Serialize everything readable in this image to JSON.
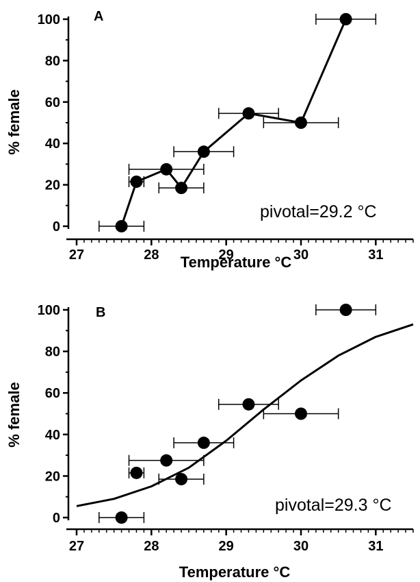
{
  "chart_data": [
    {
      "type": "line",
      "panel_label": "A",
      "xlabel": "Temperature °C",
      "ylabel": "% female",
      "xlim": [
        27,
        31.5
      ],
      "ylim": [
        0,
        100
      ],
      "xticks": [
        "27",
        "28",
        "29",
        "30",
        "31"
      ],
      "yticks": [
        "0",
        "20",
        "40",
        "60",
        "80",
        "100"
      ],
      "annotation": "pivotal=29.2 °C",
      "series": [
        {
          "x": [
            27.6,
            27.8,
            28.2,
            28.4,
            28.7,
            29.3,
            30.0,
            30.6
          ],
          "y": [
            0,
            21.5,
            27.5,
            18.5,
            36,
            54.5,
            50,
            100
          ],
          "xerr": [
            0.3,
            0.1,
            0.5,
            0.3,
            0.4,
            0.4,
            0.5,
            0.4
          ]
        }
      ]
    },
    {
      "type": "scatter",
      "panel_label": "B",
      "xlabel": "Temperature °C",
      "ylabel": "% female",
      "xlim": [
        27,
        31.5
      ],
      "ylim": [
        0,
        100
      ],
      "xticks": [
        "27",
        "28",
        "29",
        "30",
        "31"
      ],
      "yticks": [
        "0",
        "20",
        "40",
        "60",
        "80",
        "100"
      ],
      "annotation": "pivotal=29.3 °C",
      "series": [
        {
          "x": [
            27.6,
            27.8,
            28.2,
            28.4,
            28.7,
            29.3,
            30.0,
            30.6
          ],
          "y": [
            0,
            21.5,
            27.5,
            18.5,
            36,
            54.5,
            50,
            100
          ],
          "xerr": [
            0.3,
            0.1,
            0.5,
            0.3,
            0.4,
            0.4,
            0.5,
            0.4
          ]
        }
      ],
      "fit_curve": {
        "x": [
          27.0,
          27.5,
          28.0,
          28.5,
          29.0,
          29.5,
          30.0,
          30.5,
          31.0,
          31.5
        ],
        "y": [
          5.5,
          9,
          15,
          24,
          37,
          52,
          66,
          78,
          87,
          93
        ]
      }
    }
  ]
}
